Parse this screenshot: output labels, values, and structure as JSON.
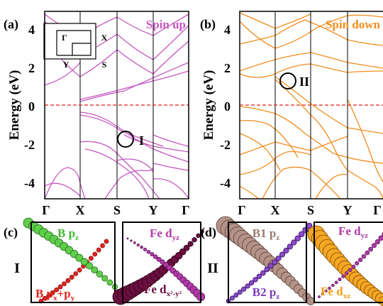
{
  "panels": {
    "a": {
      "label": "(a)",
      "title": "Spin up",
      "title_color": "#c558c0",
      "band_color": "#c558c0",
      "marker": "I"
    },
    "b": {
      "label": "(b)",
      "title": "Spin down",
      "title_color": "#f28c1e",
      "band_color": "#f28c1e",
      "marker": "II"
    }
  },
  "inset_bz": {
    "gamma": "Γ",
    "x": "X",
    "y": "Y",
    "s": "S"
  },
  "y_axis": {
    "label": "Energy (eV)",
    "ticks": [
      "4",
      "2",
      "0",
      "-2",
      "-4"
    ]
  },
  "x_axis": {
    "ticks": [
      "Γ",
      "X",
      "S",
      "Y",
      "Γ"
    ]
  },
  "fermi_color": "#e0201b",
  "zooms": {
    "c": {
      "label": "(c)",
      "row_marker": "I",
      "left": {
        "top_name": "B p",
        "top_sub": "z",
        "top_color": "#3fb832",
        "bottom_name": "B p",
        "bottom_sub1": "x",
        "bottom_plus": "+p",
        "bottom_sub2": "y",
        "bottom_color": "#e3241e"
      },
      "right": {
        "top_name": "Fe d",
        "top_sub": "yz",
        "top_color": "#b13aa8",
        "bottom_name": "Fe d",
        "bottom_sub": "x²-y²",
        "bottom_color": "#6a0f3f"
      }
    },
    "d": {
      "label": "(d)",
      "row_marker": "II",
      "left": {
        "top_name": "B1 p",
        "top_sub": "z",
        "top_color": "#9a7a72",
        "bottom_name": "B2 p",
        "bottom_sub": "z",
        "bottom_color": "#7a3ab8"
      },
      "right": {
        "top_name": "Fe d",
        "top_sub": "yz",
        "top_color": "#b13aa8",
        "bottom_name": "Fe d",
        "bottom_sub": "xz",
        "bottom_color": "#f39c12"
      }
    }
  }
}
